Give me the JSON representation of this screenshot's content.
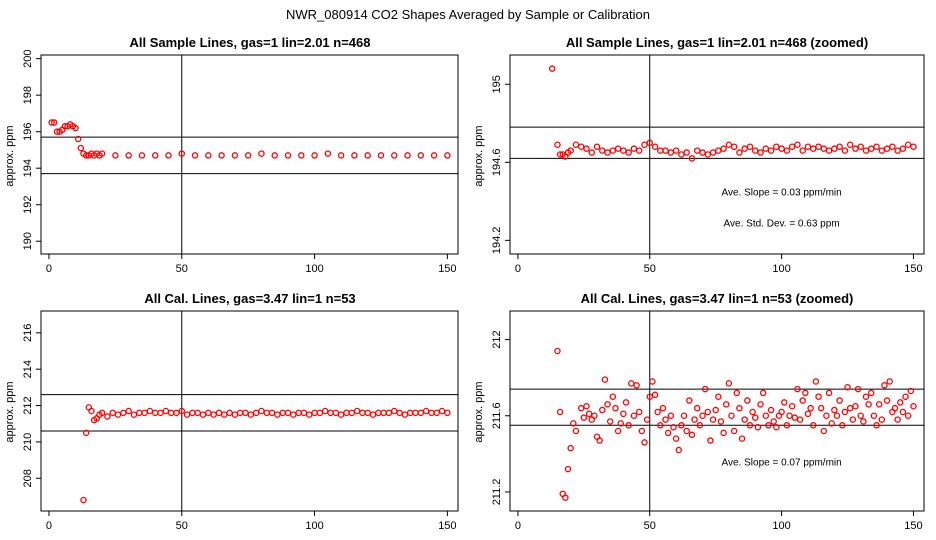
{
  "figure": {
    "title": "NWR_080914  CO2 Shapes Averaged by Sample or Calibration",
    "ylabel": "approx. ppm"
  },
  "chart_data": [
    {
      "type": "scatter",
      "title": "All Sample Lines, gas=1 lin=2.01 n=468",
      "ylabel": "approx. ppm",
      "xlim": [
        -3,
        154
      ],
      "ylim": [
        189.3,
        200.2
      ],
      "xticks": [
        0,
        50,
        100,
        150
      ],
      "yticks": [
        190,
        192,
        194,
        196,
        198,
        200
      ],
      "vline": 50,
      "hlines": [
        193.7,
        195.7
      ],
      "marker_color": "#ff0000",
      "points": [
        [
          1,
          196.5
        ],
        [
          2,
          196.5
        ],
        [
          3,
          196.0
        ],
        [
          4,
          196.0
        ],
        [
          5,
          196.1
        ],
        [
          6,
          196.3
        ],
        [
          7,
          196.3
        ],
        [
          8,
          196.4
        ],
        [
          9,
          196.3
        ],
        [
          10,
          196.2
        ],
        [
          11,
          195.6
        ],
        [
          12,
          195.1
        ],
        [
          13,
          194.8
        ],
        [
          14,
          194.7
        ],
        [
          15,
          194.7
        ],
        [
          16,
          194.8
        ],
        [
          17,
          194.7
        ],
        [
          18,
          194.8
        ],
        [
          19,
          194.7
        ],
        [
          20,
          194.8
        ],
        [
          25,
          194.7
        ],
        [
          30,
          194.7
        ],
        [
          35,
          194.7
        ],
        [
          40,
          194.7
        ],
        [
          45,
          194.7
        ],
        [
          50,
          194.8
        ],
        [
          55,
          194.7
        ],
        [
          60,
          194.7
        ],
        [
          65,
          194.7
        ],
        [
          70,
          194.7
        ],
        [
          75,
          194.7
        ],
        [
          80,
          194.8
        ],
        [
          85,
          194.7
        ],
        [
          90,
          194.7
        ],
        [
          95,
          194.7
        ],
        [
          100,
          194.7
        ],
        [
          105,
          194.8
        ],
        [
          110,
          194.7
        ],
        [
          115,
          194.7
        ],
        [
          120,
          194.7
        ],
        [
          125,
          194.7
        ],
        [
          130,
          194.7
        ],
        [
          135,
          194.7
        ],
        [
          140,
          194.7
        ],
        [
          145,
          194.7
        ],
        [
          150,
          194.7
        ]
      ],
      "annotations": []
    },
    {
      "type": "scatter",
      "title": "All Sample Lines, gas=1 lin=2.01 n=468 (zoomed)",
      "ylabel": "approx. ppm",
      "xlim": [
        -3,
        154
      ],
      "ylim": [
        194.13,
        195.15
      ],
      "xticks": [
        0,
        50,
        100,
        150
      ],
      "yticks": [
        194.2,
        194.6,
        195.0
      ],
      "vline": 50,
      "hlines": [
        194.62,
        194.78
      ],
      "marker_color": "#ff0000",
      "points": [
        [
          13,
          195.08
        ],
        [
          15,
          194.69
        ],
        [
          16,
          194.64
        ],
        [
          17,
          194.64
        ],
        [
          18,
          194.63
        ],
        [
          19,
          194.65
        ],
        [
          20,
          194.66
        ],
        [
          22,
          194.69
        ],
        [
          24,
          194.68
        ],
        [
          26,
          194.67
        ],
        [
          28,
          194.65
        ],
        [
          30,
          194.68
        ],
        [
          32,
          194.66
        ],
        [
          34,
          194.65
        ],
        [
          36,
          194.66
        ],
        [
          38,
          194.67
        ],
        [
          40,
          194.66
        ],
        [
          42,
          194.65
        ],
        [
          44,
          194.67
        ],
        [
          46,
          194.66
        ],
        [
          48,
          194.69
        ],
        [
          50,
          194.7
        ],
        [
          52,
          194.68
        ],
        [
          54,
          194.66
        ],
        [
          56,
          194.66
        ],
        [
          58,
          194.65
        ],
        [
          60,
          194.66
        ],
        [
          62,
          194.64
        ],
        [
          64,
          194.65
        ],
        [
          66,
          194.62
        ],
        [
          68,
          194.66
        ],
        [
          70,
          194.65
        ],
        [
          72,
          194.64
        ],
        [
          74,
          194.65
        ],
        [
          76,
          194.66
        ],
        [
          78,
          194.67
        ],
        [
          80,
          194.69
        ],
        [
          82,
          194.68
        ],
        [
          84,
          194.65
        ],
        [
          86,
          194.67
        ],
        [
          88,
          194.68
        ],
        [
          90,
          194.66
        ],
        [
          92,
          194.65
        ],
        [
          94,
          194.67
        ],
        [
          96,
          194.66
        ],
        [
          98,
          194.68
        ],
        [
          100,
          194.67
        ],
        [
          102,
          194.66
        ],
        [
          104,
          194.68
        ],
        [
          106,
          194.69
        ],
        [
          108,
          194.66
        ],
        [
          110,
          194.68
        ],
        [
          112,
          194.67
        ],
        [
          114,
          194.68
        ],
        [
          116,
          194.67
        ],
        [
          118,
          194.66
        ],
        [
          120,
          194.67
        ],
        [
          122,
          194.68
        ],
        [
          124,
          194.66
        ],
        [
          126,
          194.69
        ],
        [
          128,
          194.67
        ],
        [
          130,
          194.68
        ],
        [
          132,
          194.66
        ],
        [
          134,
          194.67
        ],
        [
          136,
          194.68
        ],
        [
          138,
          194.66
        ],
        [
          140,
          194.67
        ],
        [
          142,
          194.68
        ],
        [
          144,
          194.66
        ],
        [
          146,
          194.67
        ],
        [
          148,
          194.69
        ],
        [
          150,
          194.68
        ]
      ],
      "annotations": [
        {
          "text": "Ave. Slope =  0.03  ppm/min",
          "x": 100,
          "y": 194.43
        },
        {
          "text": "Ave. Std. Dev. =  0.63  ppm",
          "x": 100,
          "y": 194.27
        }
      ]
    },
    {
      "type": "scatter",
      "title": "All Cal. Lines, gas=3.47 lin=1 n=53",
      "ylabel": "approx. ppm",
      "xlim": [
        -3,
        154
      ],
      "ylim": [
        206.2,
        217.2
      ],
      "xticks": [
        0,
        50,
        100,
        150
      ],
      "yticks": [
        208,
        210,
        212,
        214,
        216
      ],
      "vline": 50,
      "hlines": [
        210.6,
        212.6
      ],
      "marker_color": "#ff0000",
      "points": [
        [
          13,
          206.8
        ],
        [
          14,
          210.5
        ],
        [
          15,
          211.9
        ],
        [
          16,
          211.7
        ],
        [
          17,
          211.2
        ],
        [
          18,
          211.3
        ],
        [
          19,
          211.5
        ],
        [
          20,
          211.6
        ],
        [
          22,
          211.4
        ],
        [
          24,
          211.6
        ],
        [
          26,
          211.5
        ],
        [
          28,
          211.6
        ],
        [
          30,
          211.7
        ],
        [
          32,
          211.5
        ],
        [
          34,
          211.6
        ],
        [
          36,
          211.6
        ],
        [
          38,
          211.7
        ],
        [
          40,
          211.6
        ],
        [
          42,
          211.6
        ],
        [
          44,
          211.7
        ],
        [
          46,
          211.6
        ],
        [
          48,
          211.6
        ],
        [
          50,
          211.7
        ],
        [
          52,
          211.5
        ],
        [
          54,
          211.6
        ],
        [
          56,
          211.6
        ],
        [
          58,
          211.5
        ],
        [
          60,
          211.6
        ],
        [
          62,
          211.5
        ],
        [
          64,
          211.6
        ],
        [
          66,
          211.5
        ],
        [
          68,
          211.6
        ],
        [
          70,
          211.5
        ],
        [
          72,
          211.6
        ],
        [
          74,
          211.6
        ],
        [
          76,
          211.5
        ],
        [
          78,
          211.6
        ],
        [
          80,
          211.7
        ],
        [
          82,
          211.6
        ],
        [
          84,
          211.6
        ],
        [
          86,
          211.5
        ],
        [
          88,
          211.6
        ],
        [
          90,
          211.6
        ],
        [
          92,
          211.5
        ],
        [
          94,
          211.6
        ],
        [
          96,
          211.6
        ],
        [
          98,
          211.5
        ],
        [
          100,
          211.6
        ],
        [
          102,
          211.6
        ],
        [
          104,
          211.7
        ],
        [
          106,
          211.6
        ],
        [
          108,
          211.6
        ],
        [
          110,
          211.5
        ],
        [
          112,
          211.6
        ],
        [
          114,
          211.6
        ],
        [
          116,
          211.7
        ],
        [
          118,
          211.6
        ],
        [
          120,
          211.6
        ],
        [
          122,
          211.5
        ],
        [
          124,
          211.6
        ],
        [
          126,
          211.6
        ],
        [
          128,
          211.6
        ],
        [
          130,
          211.7
        ],
        [
          132,
          211.6
        ],
        [
          134,
          211.5
        ],
        [
          136,
          211.6
        ],
        [
          138,
          211.6
        ],
        [
          140,
          211.6
        ],
        [
          142,
          211.7
        ],
        [
          144,
          211.6
        ],
        [
          146,
          211.6
        ],
        [
          148,
          211.7
        ],
        [
          150,
          211.6
        ]
      ],
      "annotations": []
    },
    {
      "type": "scatter",
      "title": "All Cal. Lines, gas=3.47 lin=1 n=53 (zoomed)",
      "ylabel": "approx. ppm",
      "xlim": [
        -3,
        154
      ],
      "ylim": [
        211.1,
        212.15
      ],
      "xticks": [
        0,
        50,
        100,
        150
      ],
      "yticks": [
        211.2,
        211.6,
        212.0
      ],
      "vline": 50,
      "hlines": [
        211.55,
        211.74
      ],
      "marker_color": "#ff0000",
      "points": [
        [
          15,
          211.94
        ],
        [
          16,
          211.62
        ],
        [
          17,
          211.19
        ],
        [
          18,
          211.17
        ],
        [
          19,
          211.32
        ],
        [
          20,
          211.43
        ],
        [
          21,
          211.56
        ],
        [
          22,
          211.52
        ],
        [
          24,
          211.64
        ],
        [
          25,
          211.59
        ],
        [
          26,
          211.65
        ],
        [
          27,
          211.61
        ],
        [
          28,
          211.58
        ],
        [
          29,
          211.6
        ],
        [
          30,
          211.49
        ],
        [
          31,
          211.47
        ],
        [
          32,
          211.63
        ],
        [
          33,
          211.79
        ],
        [
          34,
          211.66
        ],
        [
          35,
          211.57
        ],
        [
          36,
          211.7
        ],
        [
          37,
          211.64
        ],
        [
          38,
          211.52
        ],
        [
          39,
          211.56
        ],
        [
          40,
          211.61
        ],
        [
          41,
          211.67
        ],
        [
          42,
          211.55
        ],
        [
          43,
          211.77
        ],
        [
          44,
          211.6
        ],
        [
          45,
          211.76
        ],
        [
          46,
          211.62
        ],
        [
          47,
          211.52
        ],
        [
          48,
          211.46
        ],
        [
          49,
          211.58
        ],
        [
          50,
          211.7
        ],
        [
          51,
          211.78
        ],
        [
          52,
          211.71
        ],
        [
          53,
          211.62
        ],
        [
          54,
          211.55
        ],
        [
          55,
          211.64
        ],
        [
          56,
          211.58
        ],
        [
          57,
          211.51
        ],
        [
          58,
          211.6
        ],
        [
          59,
          211.54
        ],
        [
          60,
          211.48
        ],
        [
          61,
          211.42
        ],
        [
          62,
          211.55
        ],
        [
          63,
          211.6
        ],
        [
          64,
          211.52
        ],
        [
          65,
          211.68
        ],
        [
          66,
          211.5
        ],
        [
          67,
          211.58
        ],
        [
          68,
          211.64
        ],
        [
          69,
          211.55
        ],
        [
          70,
          211.6
        ],
        [
          71,
          211.74
        ],
        [
          72,
          211.62
        ],
        [
          73,
          211.47
        ],
        [
          74,
          211.58
        ],
        [
          75,
          211.63
        ],
        [
          76,
          211.7
        ],
        [
          77,
          211.57
        ],
        [
          78,
          211.51
        ],
        [
          79,
          211.66
        ],
        [
          80,
          211.77
        ],
        [
          81,
          211.6
        ],
        [
          82,
          211.52
        ],
        [
          83,
          211.72
        ],
        [
          84,
          211.64
        ],
        [
          85,
          211.48
        ],
        [
          86,
          211.58
        ],
        [
          87,
          211.68
        ],
        [
          88,
          211.55
        ],
        [
          89,
          211.62
        ],
        [
          90,
          211.59
        ],
        [
          91,
          211.54
        ],
        [
          92,
          211.66
        ],
        [
          93,
          211.72
        ],
        [
          94,
          211.6
        ],
        [
          95,
          211.55
        ],
        [
          96,
          211.63
        ],
        [
          97,
          211.57
        ],
        [
          98,
          211.54
        ],
        [
          99,
          211.6
        ],
        [
          100,
          211.62
        ],
        [
          101,
          211.67
        ],
        [
          102,
          211.55
        ],
        [
          103,
          211.6
        ],
        [
          104,
          211.65
        ],
        [
          105,
          211.59
        ],
        [
          106,
          211.74
        ],
        [
          107,
          211.58
        ],
        [
          108,
          211.68
        ],
        [
          109,
          211.72
        ],
        [
          110,
          211.61
        ],
        [
          111,
          211.64
        ],
        [
          112,
          211.55
        ],
        [
          113,
          211.78
        ],
        [
          114,
          211.7
        ],
        [
          115,
          211.64
        ],
        [
          116,
          211.52
        ],
        [
          117,
          211.6
        ],
        [
          118,
          211.72
        ],
        [
          119,
          211.56
        ],
        [
          120,
          211.63
        ],
        [
          121,
          211.6
        ],
        [
          122,
          211.68
        ],
        [
          123,
          211.55
        ],
        [
          124,
          211.62
        ],
        [
          125,
          211.75
        ],
        [
          126,
          211.64
        ],
        [
          127,
          211.58
        ],
        [
          128,
          211.65
        ],
        [
          129,
          211.74
        ],
        [
          130,
          211.6
        ],
        [
          131,
          211.57
        ],
        [
          132,
          211.7
        ],
        [
          133,
          211.66
        ],
        [
          134,
          211.72
        ],
        [
          135,
          211.6
        ],
        [
          136,
          211.55
        ],
        [
          137,
          211.66
        ],
        [
          138,
          211.58
        ],
        [
          139,
          211.76
        ],
        [
          140,
          211.68
        ],
        [
          141,
          211.78
        ],
        [
          142,
          211.62
        ],
        [
          143,
          211.64
        ],
        [
          144,
          211.58
        ],
        [
          145,
          211.67
        ],
        [
          146,
          211.62
        ],
        [
          147,
          211.7
        ],
        [
          148,
          211.6
        ],
        [
          149,
          211.73
        ],
        [
          150,
          211.65
        ]
      ],
      "annotations": [
        {
          "text": "Ave. Slope =  0.07  ppm/min",
          "x": 100,
          "y": 211.34
        }
      ]
    }
  ]
}
